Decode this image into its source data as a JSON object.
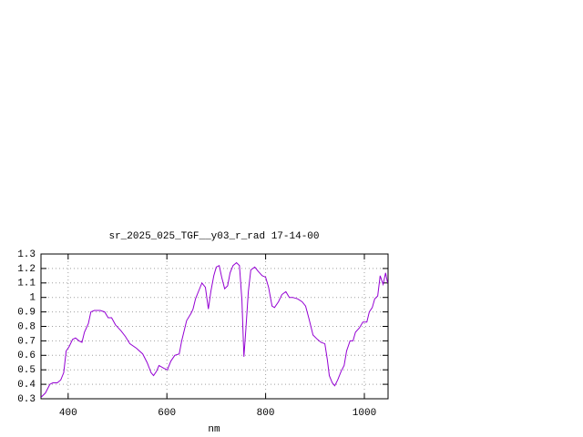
{
  "chart_data": {
    "type": "line",
    "title": "sr_2025_025_TGF__y03_r_rad 17-14-00",
    "x_label": "nm",
    "x": [
      345,
      354,
      363,
      369,
      378,
      385,
      391,
      396,
      402,
      409,
      415,
      422,
      428,
      433,
      441,
      446,
      453,
      465,
      474,
      481,
      488,
      496,
      507,
      516,
      525,
      538,
      551,
      560,
      568,
      573,
      579,
      584,
      594,
      601,
      608,
      616,
      625,
      630,
      640,
      649,
      653,
      658,
      665,
      671,
      678,
      684,
      689,
      695,
      700,
      706,
      711,
      717,
      723,
      728,
      734,
      741,
      747,
      752,
      756,
      759,
      765,
      770,
      778,
      785,
      793,
      800,
      806,
      813,
      818,
      826,
      833,
      841,
      848,
      855,
      865,
      874,
      881,
      888,
      896,
      905,
      912,
      920,
      925,
      929,
      935,
      940,
      946,
      953,
      959,
      964,
      971,
      977,
      982,
      990,
      997,
      1005,
      1010,
      1016,
      1021,
      1027,
      1032,
      1038,
      1043,
      1047
    ],
    "values": [
      0.31,
      0.34,
      0.4,
      0.41,
      0.41,
      0.43,
      0.48,
      0.63,
      0.66,
      0.71,
      0.72,
      0.7,
      0.69,
      0.76,
      0.82,
      0.9,
      0.91,
      0.91,
      0.9,
      0.86,
      0.86,
      0.81,
      0.77,
      0.73,
      0.68,
      0.65,
      0.61,
      0.55,
      0.48,
      0.46,
      0.49,
      0.53,
      0.51,
      0.5,
      0.56,
      0.6,
      0.61,
      0.7,
      0.84,
      0.89,
      0.92,
      0.99,
      1.05,
      1.1,
      1.07,
      0.92,
      1.04,
      1.15,
      1.21,
      1.22,
      1.14,
      1.06,
      1.08,
      1.17,
      1.22,
      1.24,
      1.22,
      0.98,
      0.59,
      0.73,
      1.04,
      1.19,
      1.21,
      1.18,
      1.15,
      1.14,
      1.07,
      0.94,
      0.93,
      0.97,
      1.02,
      1.04,
      1.0,
      1.0,
      0.99,
      0.97,
      0.94,
      0.85,
      0.74,
      0.71,
      0.69,
      0.68,
      0.57,
      0.46,
      0.41,
      0.39,
      0.43,
      0.49,
      0.53,
      0.63,
      0.7,
      0.7,
      0.76,
      0.79,
      0.83,
      0.83,
      0.9,
      0.93,
      0.99,
      1.01,
      1.15,
      1.09,
      1.17,
      1.1
    ],
    "color": "#9400d3",
    "xlim": [
      345,
      1048
    ],
    "xticks": [
      400,
      600,
      800,
      1000
    ],
    "ylim": [
      0.3,
      1.3
    ],
    "yticks": [
      0.3,
      0.4,
      0.5,
      0.6,
      0.7,
      0.8,
      0.9,
      1,
      1.1,
      1.2,
      1.3
    ],
    "grid": true
  }
}
